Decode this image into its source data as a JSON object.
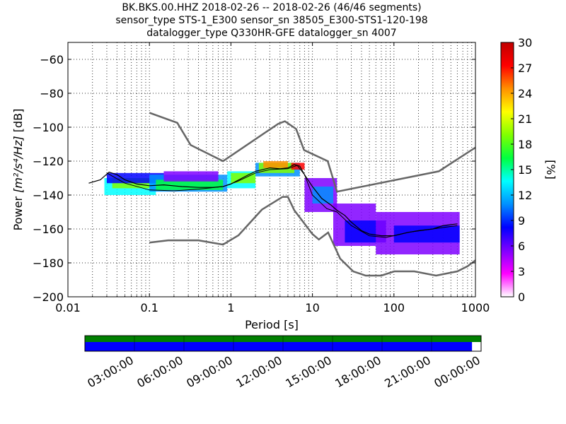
{
  "chart_data": {
    "type": "heatmap",
    "title_lines": [
      "BK.BKS.00.HHZ   2018-02-26 -- 2018-02-26  (46/46 segments)",
      "sensor_type STS-1_E300 sensor_sn 38505_E300-STS1-120-198",
      "datalogger_type Q330HR-GFE datalogger_sn 4007"
    ],
    "xlabel": "Period [s]",
    "ylabel_prefix": "Power ",
    "ylabel_unit": "[m²/s⁴/Hz]",
    "ylabel_suffix": " [dB]",
    "xscale": "log",
    "xlim": [
      0.01,
      1000
    ],
    "ylim": [
      -200,
      -50
    ],
    "x_ticks": [
      {
        "value": 0.01,
        "label": "0.01"
      },
      {
        "value": 0.1,
        "label": "0.1"
      },
      {
        "value": 1,
        "label": "1"
      },
      {
        "value": 10,
        "label": "10"
      },
      {
        "value": 100,
        "label": "100"
      },
      {
        "value": 1000,
        "label": "1000"
      }
    ],
    "y_ticks": [
      {
        "value": -60,
        "label": "−60"
      },
      {
        "value": -80,
        "label": "−80"
      },
      {
        "value": -100,
        "label": "−100"
      },
      {
        "value": -120,
        "label": "−120"
      },
      {
        "value": -140,
        "label": "−140"
      },
      {
        "value": -160,
        "label": "−160"
      },
      {
        "value": -180,
        "label": "−180"
      },
      {
        "value": -200,
        "label": "−200"
      }
    ],
    "grid": "dotted",
    "colorbar": {
      "label": "[%]",
      "range": [
        0,
        30
      ],
      "ticks": [
        {
          "value": 0,
          "label": "0"
        },
        {
          "value": 3,
          "label": "3"
        },
        {
          "value": 6,
          "label": "6"
        },
        {
          "value": 9,
          "label": "9"
        },
        {
          "value": 12,
          "label": "12"
        },
        {
          "value": 15,
          "label": "15"
        },
        {
          "value": 18,
          "label": "18"
        },
        {
          "value": 21,
          "label": "21"
        },
        {
          "value": 24,
          "label": "24"
        },
        {
          "value": 27,
          "label": "27"
        },
        {
          "value": 30,
          "label": "30"
        }
      ],
      "colors": [
        "#ffffff",
        "#ff00ff",
        "#7f00ff",
        "#0000ff",
        "#0090ff",
        "#00ffff",
        "#00ff40",
        "#80ff00",
        "#ffff00",
        "#ff9000",
        "#ff0000",
        "#c00000"
      ]
    },
    "noise_model_high": [
      [
        0.1,
        -91.5
      ],
      [
        0.22,
        -97.4
      ],
      [
        0.32,
        -110.5
      ],
      [
        0.8,
        -120
      ],
      [
        3.8,
        -98
      ],
      [
        4.6,
        -96.5
      ],
      [
        6.3,
        -101
      ],
      [
        7.9,
        -113.5
      ],
      [
        15.4,
        -120
      ],
      [
        20,
        -138
      ],
      [
        354.8,
        -126
      ],
      [
        1000,
        -112
      ]
    ],
    "noise_model_low": [
      [
        0.1,
        -168
      ],
      [
        0.17,
        -166.7
      ],
      [
        0.4,
        -166.7
      ],
      [
        0.8,
        -169.2
      ],
      [
        1.24,
        -163.7
      ],
      [
        2.4,
        -148.6
      ],
      [
        4.3,
        -141.1
      ],
      [
        5,
        -141.1
      ],
      [
        6,
        -149
      ],
      [
        10,
        -163
      ],
      [
        12,
        -166.2
      ],
      [
        15.6,
        -162.1
      ],
      [
        21.9,
        -177.5
      ],
      [
        31.6,
        -185
      ],
      [
        45,
        -187.5
      ],
      [
        70,
        -187.5
      ],
      [
        101,
        -185
      ],
      [
        178,
        -185
      ],
      [
        329,
        -187.5
      ],
      [
        600,
        -185
      ],
      [
        800,
        -182
      ],
      [
        1000,
        -178.5
      ]
    ],
    "mean_psd": [
      [
        0.018,
        -133
      ],
      [
        0.025,
        -131
      ],
      [
        0.032,
        -126.5
      ],
      [
        0.04,
        -128
      ],
      [
        0.05,
        -131
      ],
      [
        0.07,
        -133.5
      ],
      [
        0.1,
        -134.5
      ],
      [
        0.15,
        -134
      ],
      [
        0.25,
        -135
      ],
      [
        0.4,
        -135.5
      ],
      [
        0.6,
        -135.5
      ],
      [
        0.8,
        -135
      ],
      [
        1,
        -133.5
      ],
      [
        1.5,
        -129
      ],
      [
        2,
        -126
      ],
      [
        3,
        -124
      ],
      [
        4,
        -124.5
      ],
      [
        5,
        -124
      ],
      [
        6,
        -122
      ],
      [
        7,
        -123
      ],
      [
        8,
        -128
      ],
      [
        10,
        -135
      ],
      [
        13,
        -142
      ],
      [
        17,
        -146
      ],
      [
        20,
        -149
      ],
      [
        25,
        -152
      ],
      [
        30,
        -156
      ],
      [
        40,
        -161
      ],
      [
        50,
        -163
      ],
      [
        70,
        -164
      ],
      [
        100,
        -164
      ],
      [
        150,
        -162
      ],
      [
        200,
        -161
      ],
      [
        300,
        -160
      ],
      [
        400,
        -158
      ],
      [
        600,
        -157
      ]
    ],
    "mode_psd": [
      [
        0.03,
        -127
      ],
      [
        0.05,
        -133
      ],
      [
        0.1,
        -137
      ],
      [
        0.2,
        -137.5
      ],
      [
        0.4,
        -136.5
      ],
      [
        0.8,
        -135
      ],
      [
        1.2,
        -132
      ],
      [
        2,
        -127
      ],
      [
        3,
        -125
      ],
      [
        5,
        -124.5
      ],
      [
        6.5,
        -122.5
      ],
      [
        8,
        -128
      ],
      [
        10,
        -140
      ],
      [
        15,
        -148
      ],
      [
        20,
        -150
      ],
      [
        30,
        -158
      ],
      [
        50,
        -164
      ],
      [
        80,
        -165
      ],
      [
        150,
        -162
      ],
      [
        300,
        -160
      ],
      [
        600,
        -158
      ]
    ],
    "density_bands": [
      {
        "x": [
          0.028,
          0.12
        ],
        "y": [
          -140,
          -130
        ],
        "percent": 13
      },
      {
        "x": [
          0.035,
          0.1
        ],
        "y": [
          -136,
          -130
        ],
        "percent": 18
      },
      {
        "x": [
          0.03,
          0.15
        ],
        "y": [
          -133,
          -127
        ],
        "percent": 8
      },
      {
        "x": [
          0.1,
          0.9
        ],
        "y": [
          -138,
          -128
        ],
        "percent": 12
      },
      {
        "x": [
          0.12,
          0.8
        ],
        "y": [
          -137,
          -131
        ],
        "percent": 17
      },
      {
        "x": [
          0.15,
          0.7
        ],
        "y": [
          -132,
          -126
        ],
        "percent": 6
      },
      {
        "x": [
          0.9,
          2
        ],
        "y": [
          -136,
          -126
        ],
        "percent": 13
      },
      {
        "x": [
          1,
          2
        ],
        "y": [
          -133,
          -127
        ],
        "percent": 19
      },
      {
        "x": [
          2,
          7
        ],
        "y": [
          -129,
          -121
        ],
        "percent": 12
      },
      {
        "x": [
          2.2,
          6
        ],
        "y": [
          -127,
          -121
        ],
        "percent": 19
      },
      {
        "x": [
          2.5,
          5
        ],
        "y": [
          -124,
          -120
        ],
        "percent": 25
      },
      {
        "x": [
          5.5,
          8
        ],
        "y": [
          -125,
          -121
        ],
        "percent": 28
      },
      {
        "x": [
          8,
          20
        ],
        "y": [
          -150,
          -130
        ],
        "percent": 6
      },
      {
        "x": [
          10,
          18
        ],
        "y": [
          -145,
          -135
        ],
        "percent": 11
      },
      {
        "x": [
          18,
          60
        ],
        "y": [
          -170,
          -145
        ],
        "percent": 5
      },
      {
        "x": [
          25,
          80
        ],
        "y": [
          -168,
          -155
        ],
        "percent": 9
      },
      {
        "x": [
          60,
          640
        ],
        "y": [
          -175,
          -150
        ],
        "percent": 5
      },
      {
        "x": [
          100,
          640
        ],
        "y": [
          -168,
          -158
        ],
        "percent": 8
      }
    ],
    "timeline": {
      "tick_labels": [
        "03:00:00",
        "06:00:00",
        "09:00:00",
        "12:00:00",
        "15:00:00",
        "18:00:00",
        "21:00:00",
        "00:00:00"
      ],
      "data_coverage_fraction": 1.0,
      "gap_coverage_fraction": 0.977
    }
  }
}
